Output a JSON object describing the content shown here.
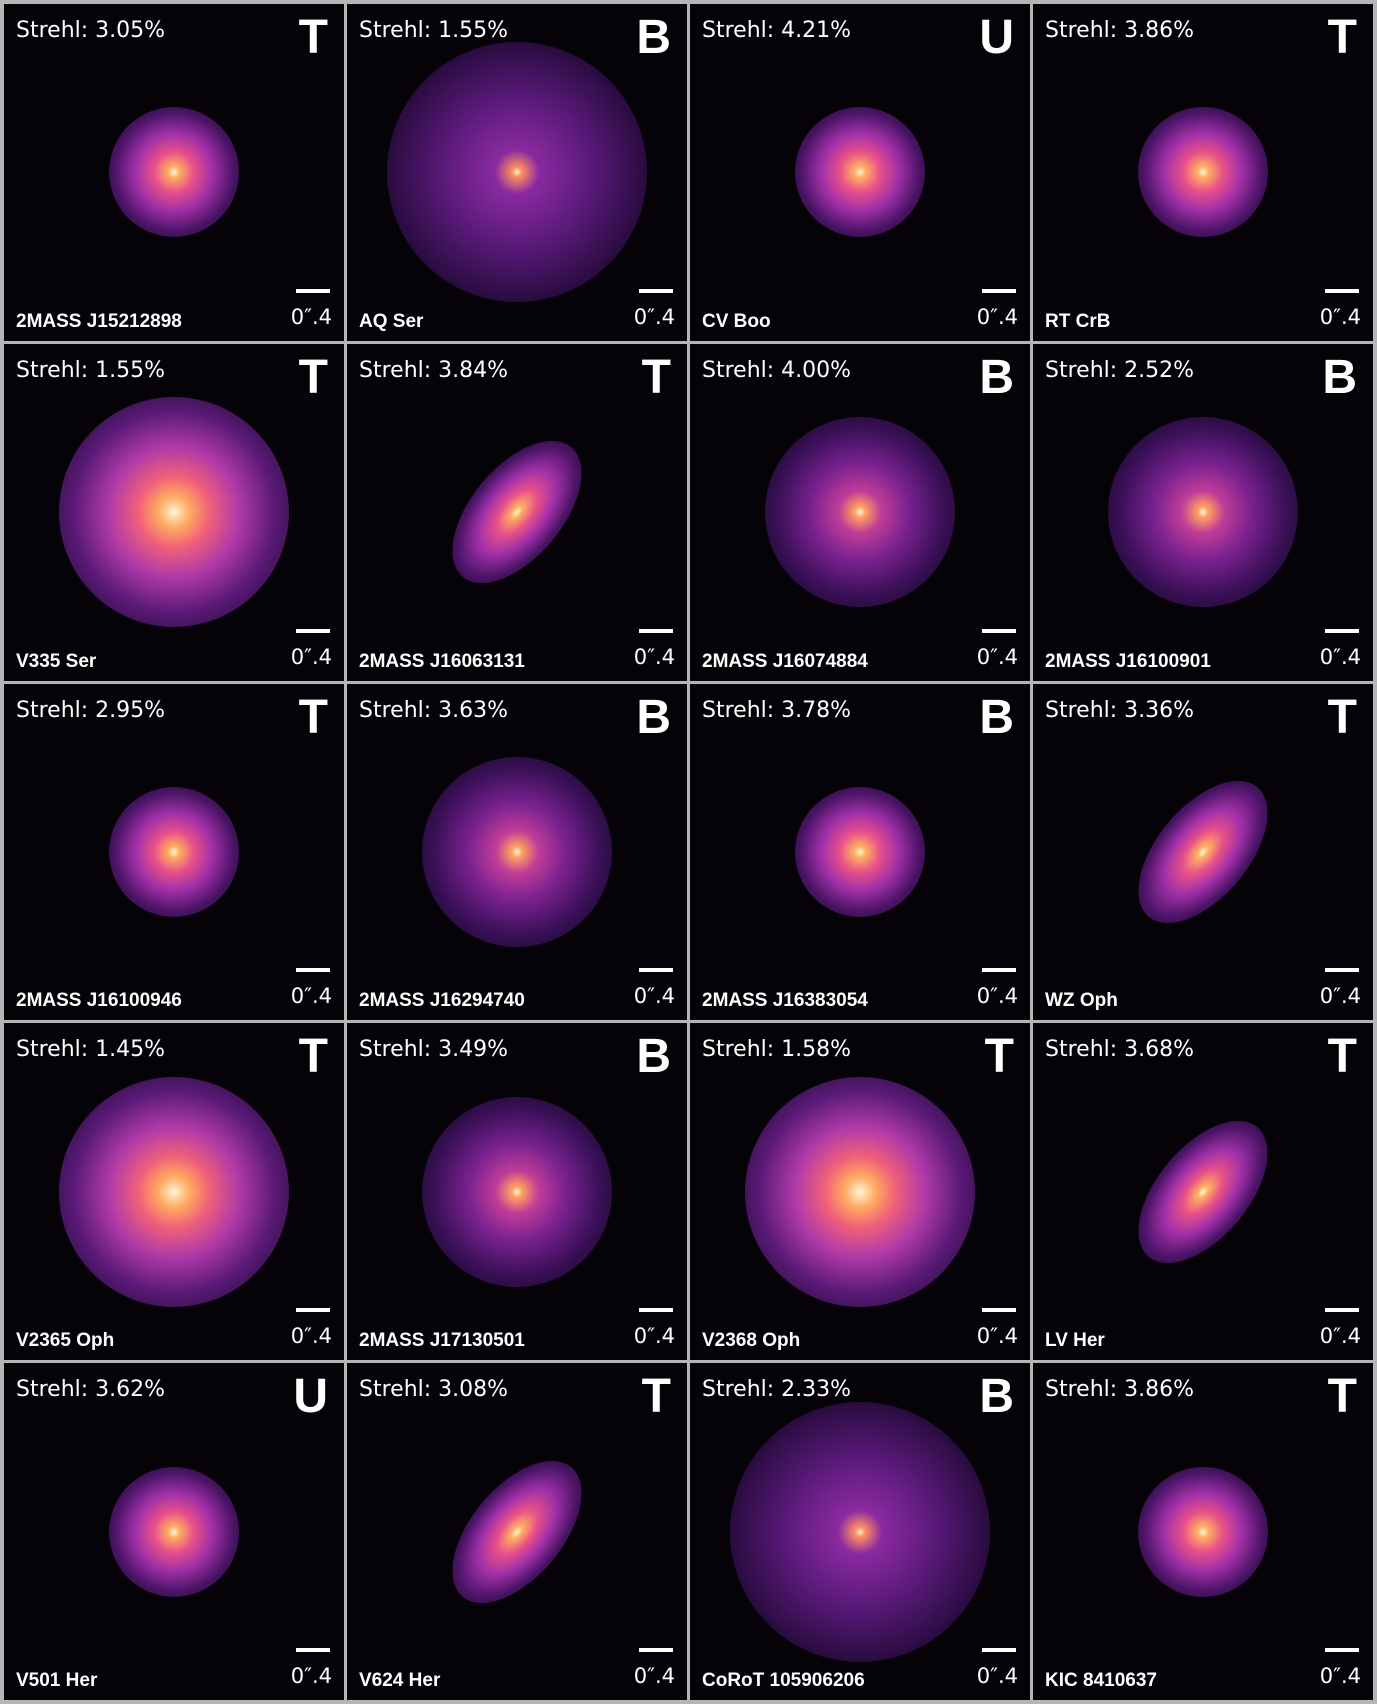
{
  "panels": [
    {
      "strehl": "Strehl: 3.05%",
      "class": "T",
      "name": "2MASS J15212898",
      "scale": "0″.4"
    },
    {
      "strehl": "Strehl: 1.55%",
      "class": "B",
      "name": "AQ Ser",
      "scale": "0″.4"
    },
    {
      "strehl": "Strehl: 4.21%",
      "class": "U",
      "name": "CV Boo",
      "scale": "0″.4"
    },
    {
      "strehl": "Strehl: 3.86%",
      "class": "T",
      "name": "RT CrB",
      "scale": "0″.4"
    },
    {
      "strehl": "Strehl: 1.55%",
      "class": "T",
      "name": "V335 Ser",
      "scale": "0″.4"
    },
    {
      "strehl": "Strehl: 3.84%",
      "class": "T",
      "name": "2MASS J16063131",
      "scale": "0″.4"
    },
    {
      "strehl": "Strehl: 4.00%",
      "class": "B",
      "name": "2MASS J16074884",
      "scale": "0″.4"
    },
    {
      "strehl": "Strehl: 2.52%",
      "class": "B",
      "name": "2MASS J16100901",
      "scale": "0″.4"
    },
    {
      "strehl": "Strehl: 2.95%",
      "class": "T",
      "name": "2MASS J16100946",
      "scale": "0″.4"
    },
    {
      "strehl": "Strehl: 3.63%",
      "class": "B",
      "name": "2MASS J16294740",
      "scale": "0″.4"
    },
    {
      "strehl": "Strehl: 3.78%",
      "class": "B",
      "name": "2MASS J16383054",
      "scale": "0″.4"
    },
    {
      "strehl": "Strehl: 3.36%",
      "class": "T",
      "name": "WZ Oph",
      "scale": "0″.4"
    },
    {
      "strehl": "Strehl: 1.45%",
      "class": "T",
      "name": "V2365 Oph",
      "scale": "0″.4"
    },
    {
      "strehl": "Strehl: 3.49%",
      "class": "B",
      "name": "2MASS J17130501",
      "scale": "0″.4"
    },
    {
      "strehl": "Strehl: 1.58%",
      "class": "T",
      "name": "V2368 Oph",
      "scale": "0″.4"
    },
    {
      "strehl": "Strehl: 3.68%",
      "class": "T",
      "name": "LV Her",
      "scale": "0″.4"
    },
    {
      "strehl": "Strehl: 3.62%",
      "class": "U",
      "name": "V501 Her",
      "scale": "0″.4"
    },
    {
      "strehl": "Strehl: 3.08%",
      "class": "T",
      "name": "V624 Her",
      "scale": "0″.4"
    },
    {
      "strehl": "Strehl: 2.33%",
      "class": "B",
      "name": "CoRoT 105906206",
      "scale": "0″.4"
    },
    {
      "strehl": "Strehl: 3.86%",
      "class": "T",
      "name": "KIC 8410637",
      "scale": "0″.4"
    }
  ]
}
